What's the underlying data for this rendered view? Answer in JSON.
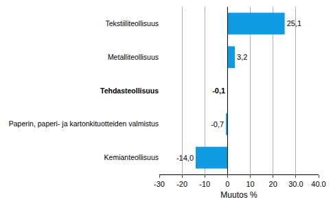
{
  "chart_data": {
    "type": "bar",
    "orientation": "horizontal",
    "categories": [
      "Tekstiiliteollisuus",
      "Metalliteollisuus",
      "Tehdasteollisuus",
      "Paperin, paperi- ja kartonkituotteiden valmistus",
      "Kemianteollisuus"
    ],
    "values": [
      25.1,
      3.2,
      -0.1,
      -0.7,
      -14.0
    ],
    "value_labels": [
      "25,1",
      "3,2",
      "-0,1",
      "-0,7",
      "-14,0"
    ],
    "data_labels": true,
    "color": "#0f9be4",
    "x_label": "Muutos %",
    "xlim": [
      -30,
      40
    ],
    "xticks": [
      -30,
      -20,
      -10,
      0,
      10,
      20,
      {
        "value": 30,
        "label": "30.0"
      },
      {
        "value": 40,
        "label": "40.0"
      }
    ],
    "grid": true
  }
}
